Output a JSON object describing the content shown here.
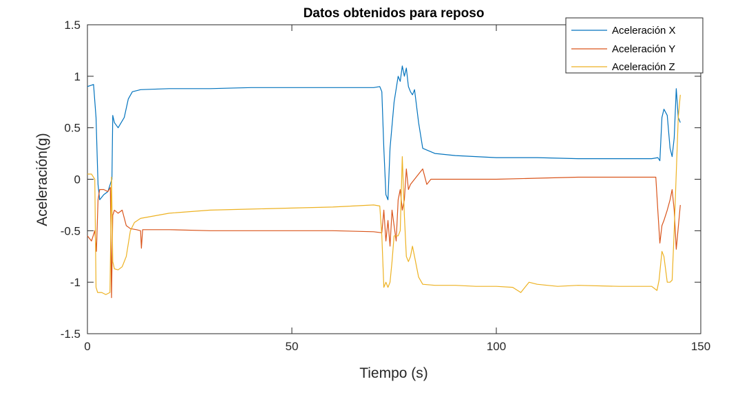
{
  "chart_data": {
    "type": "line",
    "title": "Datos obtenidos para reposo",
    "xlabel": "Tiempo (s)",
    "ylabel": "Aceleración(g)",
    "xlim": [
      0,
      150
    ],
    "ylim": [
      -1.5,
      1.5
    ],
    "xticks": [
      0,
      50,
      100,
      150
    ],
    "xtick_labels": [
      "0",
      "50",
      "100",
      "150"
    ],
    "yticks": [
      -1.5,
      -1,
      -0.5,
      0,
      0.5,
      1,
      1.5
    ],
    "ytick_labels": [
      "-1.5",
      "-1",
      "-0.5",
      "0",
      "0.5",
      "1",
      "1.5"
    ],
    "grid": false,
    "legend": "top-right",
    "series": [
      {
        "name": "Aceleración X",
        "color": "#0072BD",
        "x": [
          0,
          1.5,
          2.1,
          2.6,
          3.0,
          4.0,
          5.0,
          5.8,
          6.0,
          6.2,
          6.6,
          7.5,
          9.0,
          10.0,
          11.0,
          13.0,
          20,
          30,
          40,
          50,
          60,
          70,
          71.5,
          72.0,
          72.5,
          73.0,
          73.5,
          74.0,
          75.0,
          76.0,
          76.5,
          77.0,
          77.5,
          78.0,
          78.5,
          79.0,
          79.5,
          80.0,
          81.0,
          82.0,
          85,
          90,
          100,
          110,
          120,
          130,
          138,
          139.5,
          140.0,
          140.5,
          141.0,
          141.8,
          142.5,
          143.0,
          143.5,
          144.0,
          144.5,
          145.0
        ],
        "y": [
          0.9,
          0.92,
          0.6,
          -0.05,
          -0.2,
          -0.15,
          -0.12,
          -0.02,
          0.0,
          0.62,
          0.55,
          0.5,
          0.6,
          0.78,
          0.85,
          0.87,
          0.88,
          0.88,
          0.89,
          0.89,
          0.89,
          0.89,
          0.9,
          0.85,
          0.3,
          -0.15,
          -0.2,
          0.3,
          0.75,
          1.0,
          0.95,
          1.1,
          1.0,
          1.08,
          0.9,
          0.85,
          0.82,
          0.87,
          0.55,
          0.3,
          0.25,
          0.23,
          0.21,
          0.21,
          0.2,
          0.2,
          0.2,
          0.21,
          0.18,
          0.6,
          0.68,
          0.62,
          0.3,
          0.22,
          0.4,
          0.88,
          0.6,
          0.55
        ]
      },
      {
        "name": "Aceleración Y",
        "color": "#D95319",
        "x": [
          0,
          1.0,
          1.8,
          2.2,
          2.6,
          3.0,
          4.0,
          5.0,
          5.6,
          5.9,
          6.2,
          6.6,
          7.5,
          8.5,
          9.5,
          10.5,
          12.0,
          13.0,
          13.2,
          13.5,
          20,
          30,
          40,
          50,
          60,
          70,
          72.0,
          72.5,
          73.0,
          73.5,
          74.0,
          74.5,
          75.0,
          75.5,
          76.0,
          76.5,
          77.0,
          77.5,
          78.0,
          78.5,
          79.0,
          80.0,
          81.0,
          82.0,
          83.0,
          84,
          90,
          100,
          110,
          120,
          130,
          139.0,
          139.5,
          140.0,
          140.5,
          141.0,
          141.8,
          142.5,
          143.0,
          143.5,
          144.0,
          145.0
        ],
        "y": [
          -0.55,
          -0.6,
          -0.5,
          -0.7,
          -0.2,
          -0.1,
          -0.1,
          -0.12,
          -0.08,
          -1.15,
          -0.35,
          -0.3,
          -0.33,
          -0.3,
          -0.45,
          -0.48,
          -0.49,
          -0.5,
          -0.67,
          -0.49,
          -0.49,
          -0.5,
          -0.5,
          -0.5,
          -0.5,
          -0.51,
          -0.52,
          -0.3,
          -0.6,
          -0.4,
          -0.65,
          -0.3,
          -0.45,
          -0.6,
          -0.2,
          -0.1,
          -0.3,
          -0.2,
          0.1,
          -0.1,
          -0.05,
          0.0,
          0.05,
          0.1,
          -0.05,
          0.0,
          0.0,
          0.0,
          0.01,
          0.02,
          0.02,
          0.02,
          -0.3,
          -0.62,
          -0.45,
          -0.4,
          -0.3,
          -0.2,
          -0.1,
          -0.3,
          -0.68,
          -0.25
        ]
      },
      {
        "name": "Aceleración Z",
        "color": "#EDB120",
        "x": [
          0,
          1.0,
          1.8,
          2.1,
          2.5,
          3.5,
          4.5,
          5.5,
          5.9,
          6.2,
          6.6,
          7.5,
          8.5,
          9.5,
          10.5,
          11.5,
          13.0,
          20,
          30,
          40,
          50,
          60,
          70,
          71.5,
          72.0,
          72.5,
          73.0,
          73.5,
          74.0,
          74.5,
          75.0,
          76.0,
          76.5,
          77.0,
          77.5,
          78.0,
          78.5,
          79.0,
          79.5,
          80.0,
          81.0,
          82.0,
          85,
          90,
          95,
          100,
          104,
          106,
          108,
          110,
          115,
          120,
          130,
          138,
          139.3,
          139.8,
          140.5,
          141.0,
          141.8,
          142.5,
          143.0,
          143.5,
          144.5,
          145.0
        ],
        "y": [
          0.05,
          0.05,
          0.0,
          -1.05,
          -1.1,
          -1.1,
          -1.12,
          -1.1,
          0.02,
          -0.8,
          -0.87,
          -0.88,
          -0.85,
          -0.75,
          -0.5,
          -0.42,
          -0.38,
          -0.33,
          -0.3,
          -0.29,
          -0.28,
          -0.27,
          -0.25,
          -0.26,
          -0.55,
          -1.05,
          -1.0,
          -1.05,
          -1.0,
          -0.8,
          -0.55,
          -0.55,
          -0.5,
          0.22,
          -0.35,
          -0.75,
          -0.8,
          -0.75,
          -0.65,
          -0.75,
          -0.95,
          -1.02,
          -1.03,
          -1.03,
          -1.04,
          -1.04,
          -1.05,
          -1.1,
          -1.0,
          -1.02,
          -1.04,
          -1.03,
          -1.04,
          -1.04,
          -1.08,
          -0.98,
          -0.7,
          -0.75,
          -1.0,
          -1.0,
          -0.98,
          -0.5,
          0.6,
          0.82
        ]
      }
    ]
  }
}
